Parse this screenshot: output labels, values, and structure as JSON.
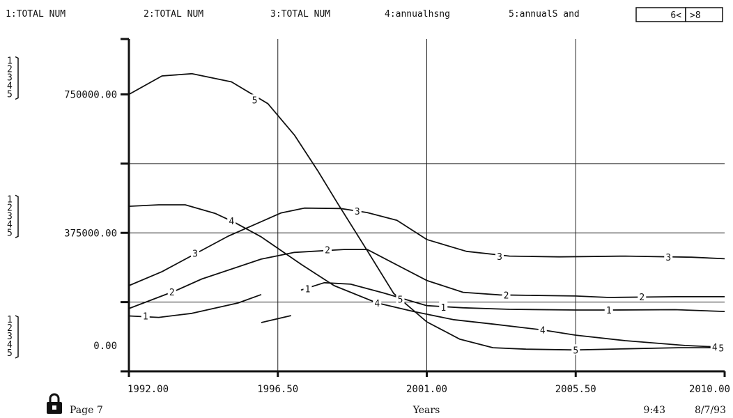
{
  "legend": [
    {
      "num": "1",
      "label": "1:TOTAL NUM"
    },
    {
      "num": "2",
      "label": "2:TOTAL NUM"
    },
    {
      "num": "3",
      "label": "3:TOTAL NUM"
    },
    {
      "num": "4",
      "label": "4:annualhsng"
    },
    {
      "num": "5",
      "label": "5:annualS and"
    }
  ],
  "nav": {
    "prev_label": "6<",
    "next_label": ">8"
  },
  "footer": {
    "page_label": "Page 7",
    "time": "9:43",
    "date": "8/7/93",
    "lock_icon": "lock-icon"
  },
  "chart_data": {
    "type": "line",
    "xlabel": "Years",
    "ylabel": "",
    "xlim": [
      1992,
      2010
    ],
    "ylim": [
      0,
      900000
    ],
    "y_ticks": [
      0,
      375000,
      750000
    ],
    "y_tick_labels": [
      "0.00",
      "375000.00",
      "750000.00"
    ],
    "x_ticks": [
      1992,
      1996.5,
      2001,
      2005.5,
      2010
    ],
    "x_tick_labels": [
      "1992.00",
      "1996.50",
      "2001.00",
      "2005.50",
      "2010.00"
    ],
    "axis_scale_labels": [
      "1",
      "2",
      "3",
      "4",
      "5"
    ],
    "grid": true,
    "series": [
      {
        "name": "1",
        "segments": [
          [
            [
              1992,
              150000
            ],
            [
              1992.9,
              146000
            ],
            [
              1993.9,
              157000
            ],
            [
              1995.3,
              185000
            ],
            [
              1996,
              208000
            ]
          ],
          [
            [
              1996,
              132000
            ],
            [
              1996.9,
              151000
            ]
          ],
          [
            [
              1997.2,
              220000
            ],
            [
              1997.9,
              240000
            ],
            [
              1998.7,
              236000
            ],
            [
              1999.7,
              212000
            ],
            [
              2001,
              178000
            ],
            [
              2002.1,
              172000
            ],
            [
              2003.5,
              168000
            ],
            [
              2005.5,
              166000
            ],
            [
              2006.5,
              166000
            ],
            [
              2008.5,
              167000
            ],
            [
              2010,
              162000
            ]
          ]
        ],
        "label_at": [
          [
            1992.5,
            150000
          ],
          [
            1997.4,
            224000
          ],
          [
            2001.5,
            174000
          ],
          [
            2006.5,
            166000
          ]
        ]
      },
      {
        "name": "2",
        "segments": [
          [
            [
              1992,
              170000
            ],
            [
              1993.4,
              218000
            ],
            [
              1994.2,
              250000
            ],
            [
              1996,
              304000
            ],
            [
              1997,
              322000
            ],
            [
              1998.5,
              330000
            ],
            [
              1999.2,
              330000
            ],
            [
              2001,
              246000
            ],
            [
              2002.1,
              214000
            ],
            [
              2003.2,
              207000
            ],
            [
              2005.5,
              204000
            ],
            [
              2006.5,
              200000
            ],
            [
              2008.5,
              202000
            ],
            [
              2010,
              202000
            ]
          ]
        ],
        "label_at": [
          [
            1993.3,
            215000
          ],
          [
            1998,
            329000
          ],
          [
            2003.4,
            207000
          ],
          [
            2007.5,
            202000
          ]
        ]
      },
      {
        "name": "3",
        "segments": [
          [
            [
              1992,
              232000
            ],
            [
              1993,
              270000
            ],
            [
              1995,
              366000
            ],
            [
              1996.6,
              429000
            ],
            [
              1997.3,
              442000
            ],
            [
              1998.4,
              441000
            ],
            [
              1999.2,
              430000
            ],
            [
              2000.1,
              409000
            ],
            [
              2001,
              357000
            ],
            [
              2002.2,
              325000
            ],
            [
              2003.5,
              312000
            ],
            [
              2005,
              310000
            ],
            [
              2007,
              312000
            ],
            [
              2009,
              309000
            ],
            [
              2010,
              305000
            ]
          ]
        ],
        "label_at": [
          [
            1994,
            320000
          ],
          [
            1998.9,
            434000
          ],
          [
            2003.2,
            311000
          ],
          [
            2008.3,
            309000
          ]
        ]
      },
      {
        "name": "4",
        "segments": [
          [
            [
              1992,
              447000
            ],
            [
              1992.9,
              451000
            ],
            [
              1993.7,
              451000
            ],
            [
              1994.6,
              428000
            ],
            [
              1995.2,
              403000
            ],
            [
              1996,
              364000
            ],
            [
              1997.2,
              290000
            ],
            [
              1998.2,
              232000
            ],
            [
              1999.5,
              185000
            ],
            [
              2000.6,
              162000
            ],
            [
              2001.8,
              140000
            ],
            [
              2003,
              128000
            ],
            [
              2004.5,
              112000
            ],
            [
              2005.5,
              98000
            ],
            [
              2007,
              83000
            ],
            [
              2008.8,
              70000
            ],
            [
              2010,
              65000
            ]
          ]
        ],
        "label_at": [
          [
            1995.1,
            408000
          ],
          [
            1999.5,
            185000
          ],
          [
            2004.5,
            112000
          ],
          [
            2009.7,
            66000
          ]
        ]
      },
      {
        "name": "5",
        "segments": [
          [
            [
              1992,
              750000
            ],
            [
              1993,
              800000
            ],
            [
              1993.9,
              806000
            ],
            [
              1995.1,
              784000
            ],
            [
              1996.2,
              725000
            ],
            [
              1997,
              640000
            ],
            [
              1997.7,
              544000
            ],
            [
              1998.3,
              456000
            ],
            [
              1999.2,
              327000
            ],
            [
              2000,
              211000
            ],
            [
              2001,
              134000
            ],
            [
              2002,
              87000
            ],
            [
              2003,
              64000
            ],
            [
              2004,
              60000
            ],
            [
              2005.5,
              58000
            ],
            [
              2007,
              61000
            ],
            [
              2008.6,
              64000
            ],
            [
              2009.7,
              64000
            ],
            [
              2010,
              62000
            ]
          ]
        ],
        "label_at": [
          [
            1995.8,
            735000
          ],
          [
            2000.2,
            195000
          ],
          [
            2005.5,
            58000
          ],
          [
            2009.9,
            63000
          ]
        ]
      }
    ]
  }
}
